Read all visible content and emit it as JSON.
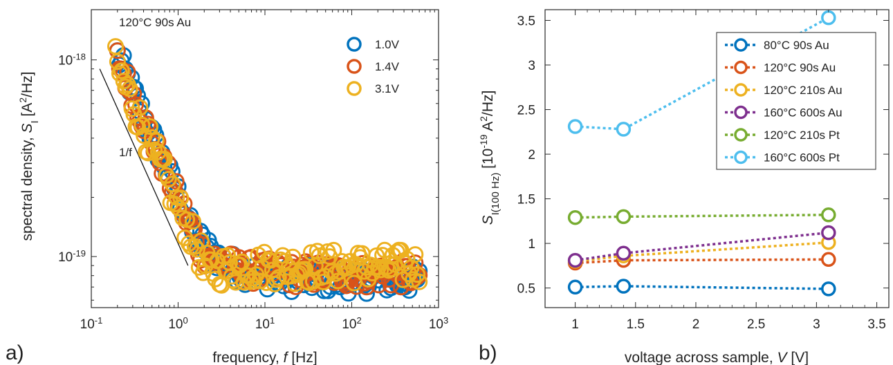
{
  "chart_data": [
    {
      "type": "scatter",
      "panel_label": "a)",
      "title": "",
      "annotation": "120°C  90s Au",
      "xlabel": {
        "prefix": "frequency, ",
        "var": "f",
        "suffix": " [Hz]"
      },
      "ylabel": {
        "prefix": "spectral density, ",
        "var": "S",
        "sub": "I",
        "post": " [A",
        "sup": "2",
        "end": "/Hz]"
      },
      "xscale": "log",
      "yscale": "log",
      "xlim": [
        0.1,
        1000
      ],
      "ylim": [
        5.5e-20,
        1.8e-18
      ],
      "xticks": [
        {
          "v": 0.1,
          "base": "10",
          "exp": "-1"
        },
        {
          "v": 1,
          "base": "10",
          "exp": "0"
        },
        {
          "v": 10,
          "base": "10",
          "exp": "1"
        },
        {
          "v": 100,
          "base": "10",
          "exp": "2"
        },
        {
          "v": 1000,
          "base": "10",
          "exp": "3"
        }
      ],
      "yticks": [
        {
          "v": 1e-19,
          "base": "10",
          "exp": "-19"
        },
        {
          "v": 1e-18,
          "base": "10",
          "exp": "-18"
        }
      ],
      "reference_line": {
        "label": "1/f",
        "x": [
          0.125,
          1.3
        ],
        "y": [
          9e-19,
          9e-20
        ]
      },
      "legend_position": "top-right",
      "series": [
        {
          "name": "1.0V",
          "color": "#0072BD",
          "x0": 0.2,
          "y0": 1.05e-18,
          "fc": 1.35,
          "floor": 7.6e-20,
          "noise": 0.07
        },
        {
          "name": "1.4V",
          "color": "#D95319",
          "x0": 0.2,
          "y0": 1e-18,
          "fc": 1.6,
          "floor": 8.1e-20,
          "noise": 0.07
        },
        {
          "name": "3.1V",
          "color": "#EDB120",
          "x0": 0.19,
          "y0": 9.5e-19,
          "fc": 1.9,
          "floor": 8.9e-20,
          "noise": 0.09
        }
      ]
    },
    {
      "type": "line",
      "panel_label": "b)",
      "title": "",
      "xlabel": {
        "prefix": "voltage across sample, ",
        "var": "V",
        "suffix": " [V]"
      },
      "ylabel": {
        "var": "S",
        "sub": "I(100 Hz)",
        "post": " [10",
        "sup": "-19",
        "end": " A",
        "sup2": "2",
        "end2": "/Hz]"
      },
      "xlim": [
        0.75,
        3.6
      ],
      "ylim": [
        0.28,
        3.62
      ],
      "xticks": [
        1,
        1.5,
        2,
        2.5,
        3,
        3.5
      ],
      "yticks": [
        0.5,
        1,
        1.5,
        2,
        2.5,
        3,
        3.5
      ],
      "x": [
        1.0,
        1.4,
        3.1
      ],
      "legend_position": "top-right",
      "series": [
        {
          "name": "80°C  90s Au",
          "color": "#0072BD",
          "values": [
            0.51,
            0.52,
            0.49
          ]
        },
        {
          "name": "120°C  90s Au",
          "color": "#D95319",
          "values": [
            0.78,
            0.81,
            0.82
          ]
        },
        {
          "name": "120°C  210s Au",
          "color": "#EDB120",
          "values": [
            0.8,
            0.86,
            1.01
          ]
        },
        {
          "name": "160°C  600s Au",
          "color": "#7E2F8E",
          "values": [
            0.81,
            0.89,
            1.12
          ]
        },
        {
          "name": "120°C  210s Pt",
          "color": "#77AC30",
          "values": [
            1.29,
            1.3,
            1.32
          ]
        },
        {
          "name": "160°C  600s Pt",
          "color": "#4DBEEE",
          "values": [
            2.31,
            2.28,
            3.53
          ]
        }
      ]
    }
  ]
}
